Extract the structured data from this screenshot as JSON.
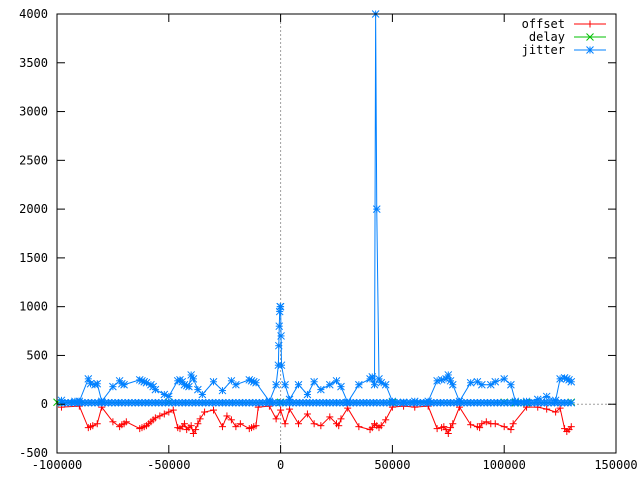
{
  "chart_data": {
    "type": "line",
    "xlim": [
      -100000,
      150000
    ],
    "ylim": [
      -500,
      4000
    ],
    "x_ticks": [
      -100000,
      -50000,
      0,
      50000,
      100000,
      150000
    ],
    "y_ticks": [
      -500,
      0,
      500,
      1000,
      1500,
      2000,
      2500,
      3000,
      3500,
      4000
    ],
    "x_tick_labels": [
      "-100000",
      "-50000",
      "0",
      "50000",
      "100000",
      "150000"
    ],
    "y_tick_labels": [
      "-500",
      "0",
      "500",
      "1000",
      "1500",
      "2000",
      "2500",
      "3000",
      "3500",
      "4000"
    ],
    "zero_axes": true,
    "grid": false,
    "legend_position": "top-right",
    "series": [
      {
        "name": "offset",
        "color": "#ff0000",
        "marker": "plus",
        "x": [
          -98000,
          -90000,
          -86000,
          -85000,
          -84000,
          -82000,
          -80000,
          -75000,
          -72000,
          -71000,
          -70000,
          -69000,
          -63000,
          -62000,
          -61000,
          -60000,
          -59000,
          -58000,
          -57000,
          -56000,
          -54000,
          -52000,
          -50000,
          -48000,
          -46000,
          -45000,
          -44000,
          -43000,
          -42000,
          -41000,
          -40000,
          -39000,
          -38000,
          -37000,
          -36000,
          -34000,
          -30000,
          -26000,
          -24000,
          -22000,
          -20000,
          -18000,
          -14000,
          -13000,
          -12000,
          -11000,
          -10000,
          -5000,
          -2000,
          0,
          2000,
          4000,
          8000,
          12000,
          15000,
          18000,
          22000,
          25000,
          26000,
          27000,
          30000,
          35000,
          40000,
          41000,
          42000,
          43000,
          44000,
          45000,
          47000,
          50000,
          55000,
          60000,
          66000,
          70000,
          72000,
          73000,
          74000,
          75000,
          76000,
          77000,
          80000,
          85000,
          88000,
          89000,
          90000,
          92000,
          94000,
          96000,
          100000,
          103000,
          104000,
          110000,
          115000,
          119000,
          123000,
          125000,
          127000,
          128000,
          129000,
          130000
        ],
        "y": [
          -30,
          -20,
          -240,
          -230,
          -220,
          -200,
          -30,
          -180,
          -230,
          -210,
          -200,
          -180,
          -250,
          -240,
          -230,
          -220,
          -200,
          -180,
          -160,
          -140,
          -120,
          -100,
          -80,
          -60,
          -240,
          -250,
          -230,
          -200,
          -260,
          -240,
          -220,
          -300,
          -260,
          -200,
          -150,
          -80,
          -60,
          -230,
          -120,
          -160,
          -230,
          -200,
          -250,
          -240,
          -230,
          -220,
          -30,
          -20,
          -150,
          -60,
          -200,
          -50,
          -200,
          -100,
          -200,
          -220,
          -130,
          -200,
          -220,
          -150,
          -40,
          -230,
          -260,
          -240,
          -200,
          -220,
          -240,
          -220,
          -160,
          -30,
          -20,
          -30,
          -20,
          -250,
          -240,
          -230,
          -260,
          -300,
          -240,
          -200,
          -30,
          -210,
          -230,
          -240,
          -200,
          -180,
          -200,
          -200,
          -230,
          -260,
          -200,
          -30,
          -30,
          -50,
          -80,
          -40,
          -250,
          -280,
          -260,
          -230
        ]
      },
      {
        "name": "delay",
        "color": "#00c000",
        "marker": "cross",
        "x": [
          -100000,
          -50000,
          0,
          50000,
          100000,
          105000,
          110000,
          130000
        ],
        "y": [
          20,
          20,
          20,
          20,
          20,
          15,
          15,
          20
        ]
      },
      {
        "name": "jitter",
        "color": "#0080ff",
        "marker": "star",
        "x": [
          -98000,
          -92000,
          -90000,
          -86000,
          -85000,
          -83000,
          -82000,
          -80000,
          -75000,
          -72000,
          -71000,
          -70000,
          -63000,
          -62000,
          -61000,
          -60000,
          -58000,
          -57000,
          -56000,
          -52000,
          -50000,
          -46000,
          -45000,
          -44000,
          -43000,
          -42000,
          -41000,
          -40000,
          -39000,
          -37000,
          -35000,
          -30000,
          -26000,
          -22000,
          -20000,
          -14000,
          -13000,
          -12000,
          -11000,
          -5000,
          -2000,
          -1000,
          -800,
          -600,
          -400,
          -200,
          0,
          200,
          400,
          2000,
          4000,
          8000,
          12000,
          15000,
          18000,
          22000,
          25000,
          27000,
          30000,
          35000,
          40000,
          41000,
          42000,
          42500,
          43000,
          44000,
          45000,
          47000,
          50000,
          55000,
          60000,
          66000,
          70000,
          72000,
          74000,
          75000,
          76000,
          77000,
          80000,
          85000,
          88000,
          90000,
          94000,
          96000,
          100000,
          103000,
          105000,
          110000,
          115000,
          119000,
          123000,
          125000,
          127000,
          128000,
          129000,
          130000
        ],
        "y": [
          40,
          30,
          30,
          260,
          210,
          200,
          210,
          30,
          180,
          240,
          210,
          200,
          250,
          240,
          230,
          220,
          200,
          180,
          150,
          100,
          80,
          240,
          250,
          230,
          200,
          190,
          180,
          300,
          260,
          150,
          100,
          230,
          140,
          240,
          200,
          250,
          240,
          230,
          220,
          30,
          200,
          400,
          600,
          800,
          950,
          1000,
          1000,
          700,
          400,
          200,
          50,
          200,
          100,
          230,
          150,
          200,
          240,
          180,
          20,
          200,
          260,
          280,
          200,
          4000,
          2000,
          260,
          220,
          200,
          30,
          20,
          30,
          30,
          240,
          250,
          260,
          300,
          240,
          200,
          30,
          220,
          230,
          200,
          200,
          230,
          260,
          200,
          30,
          30,
          50,
          80,
          40,
          260,
          270,
          260,
          250,
          230
        ]
      }
    ]
  }
}
